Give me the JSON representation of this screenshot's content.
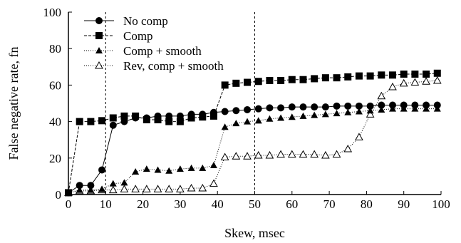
{
  "chart_data": {
    "type": "line",
    "title": "",
    "xlabel": "Skew, msec",
    "ylabel": "False negative rate, fn",
    "xlim": [
      0,
      100
    ],
    "ylim": [
      0,
      100
    ],
    "xticks": [
      0,
      10,
      20,
      30,
      40,
      50,
      60,
      70,
      80,
      90,
      100
    ],
    "yticks": [
      0,
      20,
      40,
      60,
      80,
      100
    ],
    "grid": false,
    "legend_position": "top-left",
    "reference_lines_x": [
      10,
      50
    ],
    "series": [
      {
        "name": "No comp",
        "marker": "filled-circle",
        "line_style": "solid",
        "x": [
          0,
          3,
          6,
          9,
          12,
          15,
          18,
          21,
          24,
          27,
          30,
          33,
          36,
          39,
          42,
          45,
          48,
          51,
          54,
          57,
          60,
          63,
          66,
          69,
          72,
          75,
          78,
          81,
          84,
          87,
          90,
          93,
          96,
          99
        ],
        "y": [
          1,
          5,
          5,
          13.5,
          38,
          40,
          42,
          42,
          43,
          43,
          43,
          44,
          44,
          45,
          45.5,
          46,
          46.5,
          47,
          47.5,
          47.5,
          48,
          48,
          48,
          48,
          48.5,
          48.5,
          48.5,
          48.5,
          49,
          49,
          49,
          49,
          49,
          49
        ]
      },
      {
        "name": "Comp",
        "marker": "filled-square",
        "line_style": "dashed",
        "x": [
          0,
          3,
          6,
          9,
          12,
          15,
          18,
          21,
          24,
          27,
          30,
          33,
          36,
          39,
          42,
          45,
          48,
          51,
          54,
          57,
          60,
          63,
          66,
          69,
          72,
          75,
          78,
          81,
          84,
          87,
          90,
          93,
          96,
          99
        ],
        "y": [
          1,
          40,
          40,
          40.5,
          42,
          43,
          43,
          41,
          41,
          40,
          40,
          42,
          42.5,
          43,
          60,
          61,
          61.5,
          62,
          62.5,
          62.5,
          63,
          63,
          63.5,
          64,
          64,
          64.5,
          65,
          65,
          65.5,
          65.5,
          66,
          66,
          66,
          66.5
        ]
      },
      {
        "name": "Comp + smooth",
        "marker": "filled-triangle",
        "line_style": "dotted",
        "x": [
          0,
          3,
          6,
          9,
          12,
          15,
          18,
          21,
          24,
          27,
          30,
          33,
          36,
          39,
          42,
          45,
          48,
          51,
          54,
          57,
          60,
          63,
          66,
          69,
          72,
          75,
          78,
          81,
          84,
          87,
          90,
          93,
          96,
          99
        ],
        "y": [
          1,
          2.5,
          2.5,
          3,
          6,
          6.5,
          12.5,
          14,
          13.5,
          13,
          14,
          14.5,
          14.5,
          16,
          37,
          39,
          40,
          40.5,
          41.5,
          42,
          42.5,
          43,
          43.5,
          44,
          44.5,
          45,
          45.5,
          46,
          46.5,
          47,
          47,
          47,
          47,
          47
        ]
      },
      {
        "name": "Rev, comp + smooth",
        "marker": "open-triangle",
        "line_style": "dotted",
        "x": [
          0,
          3,
          6,
          9,
          12,
          15,
          18,
          21,
          24,
          27,
          30,
          33,
          36,
          39,
          42,
          45,
          48,
          51,
          54,
          57,
          60,
          63,
          66,
          69,
          72,
          75,
          78,
          81,
          84,
          87,
          90,
          93,
          96,
          99
        ],
        "y": [
          1,
          2,
          2,
          2.5,
          2.5,
          3,
          3,
          3,
          3,
          3,
          3,
          3.5,
          3.5,
          6,
          20.5,
          21,
          21,
          21.5,
          21.5,
          22,
          22,
          22,
          22,
          21.5,
          22,
          25,
          31.5,
          44,
          54,
          59,
          61,
          61.5,
          62,
          62.5
        ]
      }
    ]
  }
}
